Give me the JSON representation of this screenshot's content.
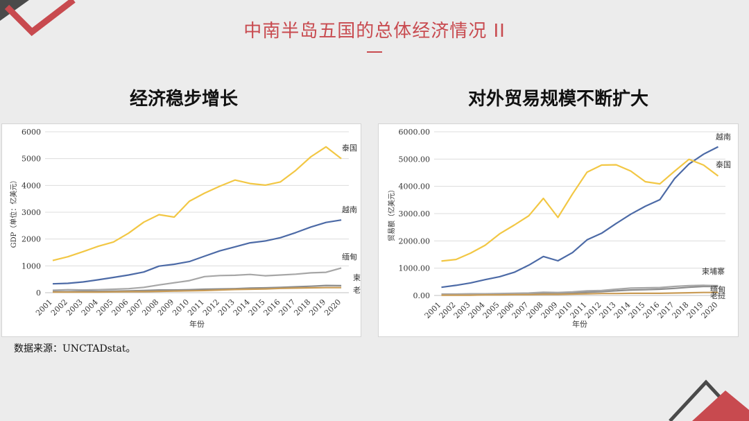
{
  "slide": {
    "title": "中南半岛五国的总体经济情况 II",
    "left_heading": "经济稳步增长",
    "right_heading": "对外贸易规模不断扩大",
    "source": "数据来源：UNCTADstat。"
  },
  "colors": {
    "accent": "#c84a4f",
    "泰国": "#f2c744",
    "越南": "#4c6aa6",
    "缅甸": "#a6a6a6",
    "柬埔寨": "#8c8c8c",
    "老挝": "#c99b55"
  },
  "chart_data": [
    {
      "type": "line",
      "title": "",
      "xlabel": "年份",
      "ylabel": "GDP（单位：亿美元）",
      "ylim": [
        0,
        6000
      ],
      "yticks": [
        0,
        1000,
        2000,
        3000,
        4000,
        5000,
        6000
      ],
      "ytick_labels": [
        "0",
        "1000",
        "2000",
        "3000",
        "4000",
        "5000",
        "6000"
      ],
      "grid": true,
      "legend": "inline labels at line ends",
      "x": [
        "2001",
        "2002",
        "2003",
        "2004",
        "2005",
        "2006",
        "2007",
        "2008",
        "2009",
        "2010",
        "2011",
        "2012",
        "2013",
        "2014",
        "2015",
        "2016",
        "2017",
        "2018",
        "2019",
        "2020"
      ],
      "series": [
        {
          "name": "泰国",
          "color": "#f2c744",
          "values": [
            1200,
            1340,
            1530,
            1730,
            1890,
            2220,
            2630,
            2910,
            2820,
            3410,
            3710,
            3970,
            4200,
            4070,
            4010,
            4130,
            4560,
            5070,
            5440,
            5000
          ]
        },
        {
          "name": "越南",
          "color": "#4c6aa6",
          "values": [
            330,
            350,
            400,
            480,
            570,
            660,
            770,
            990,
            1060,
            1160,
            1360,
            1560,
            1710,
            1860,
            1930,
            2050,
            2240,
            2450,
            2620,
            2710
          ]
        },
        {
          "name": "缅甸",
          "color": "#a6a6a6",
          "values": [
            90,
            110,
            100,
            110,
            130,
            150,
            200,
            290,
            370,
            450,
            600,
            640,
            650,
            680,
            630,
            660,
            690,
            740,
            760,
            920
          ]
        },
        {
          "name": "柬埔寨",
          "color": "#8c8c8c",
          "values": [
            40,
            40,
            50,
            50,
            60,
            70,
            80,
            100,
            100,
            110,
            130,
            140,
            150,
            170,
            180,
            200,
            220,
            240,
            270,
            260
          ]
        },
        {
          "name": "老挝",
          "color": "#c99b55",
          "values": [
            20,
            20,
            20,
            20,
            30,
            40,
            40,
            50,
            60,
            70,
            80,
            100,
            120,
            130,
            140,
            160,
            170,
            180,
            190,
            190
          ]
        }
      ]
    },
    {
      "type": "line",
      "title": "",
      "xlabel": "年份",
      "ylabel": "贸易额（亿美元）",
      "ylim": [
        0,
        6000
      ],
      "yticks": [
        0,
        1000,
        2000,
        3000,
        4000,
        5000,
        6000
      ],
      "ytick_labels": [
        "0.00",
        "1000.00",
        "2000.00",
        "3000.00",
        "4000.00",
        "5000.00",
        "6000.00"
      ],
      "grid": true,
      "legend": "inline labels at line ends",
      "x": [
        "2001",
        "2002",
        "2003",
        "2004",
        "2005",
        "2006",
        "2007",
        "2008",
        "2009",
        "2010",
        "2011",
        "2012",
        "2013",
        "2014",
        "2015",
        "2016",
        "2017",
        "2018",
        "2019",
        "2020"
      ],
      "series": [
        {
          "name": "越南",
          "color": "#4c6aa6",
          "values": [
            300,
            370,
            460,
            580,
            690,
            850,
            1110,
            1430,
            1270,
            1570,
            2040,
            2280,
            2640,
            2980,
            3270,
            3510,
            4280,
            4820,
            5180,
            5450
          ]
        },
        {
          "name": "泰国",
          "color": "#f2c744",
          "values": [
            1260,
            1320,
            1550,
            1840,
            2260,
            2580,
            2920,
            3560,
            2860,
            3720,
            4520,
            4780,
            4790,
            4560,
            4170,
            4090,
            4550,
            4990,
            4780,
            4380
          ]
        },
        {
          "name": "柬埔寨",
          "color": "#8c8c8c",
          "values": [
            30,
            30,
            40,
            40,
            50,
            60,
            70,
            90,
            90,
            100,
            120,
            140,
            170,
            200,
            210,
            230,
            260,
            300,
            330,
            330
          ]
        },
        {
          "name": "缅甸",
          "color": "#a6a6a6",
          "values": [
            50,
            50,
            60,
            60,
            70,
            80,
            90,
            120,
            110,
            130,
            170,
            180,
            230,
            270,
            280,
            290,
            330,
            360,
            370,
            360
          ]
        },
        {
          "name": "老挝",
          "color": "#c99b55",
          "values": [
            10,
            10,
            10,
            20,
            20,
            30,
            30,
            40,
            40,
            50,
            60,
            70,
            70,
            80,
            80,
            80,
            90,
            100,
            110,
            110
          ]
        }
      ]
    }
  ]
}
